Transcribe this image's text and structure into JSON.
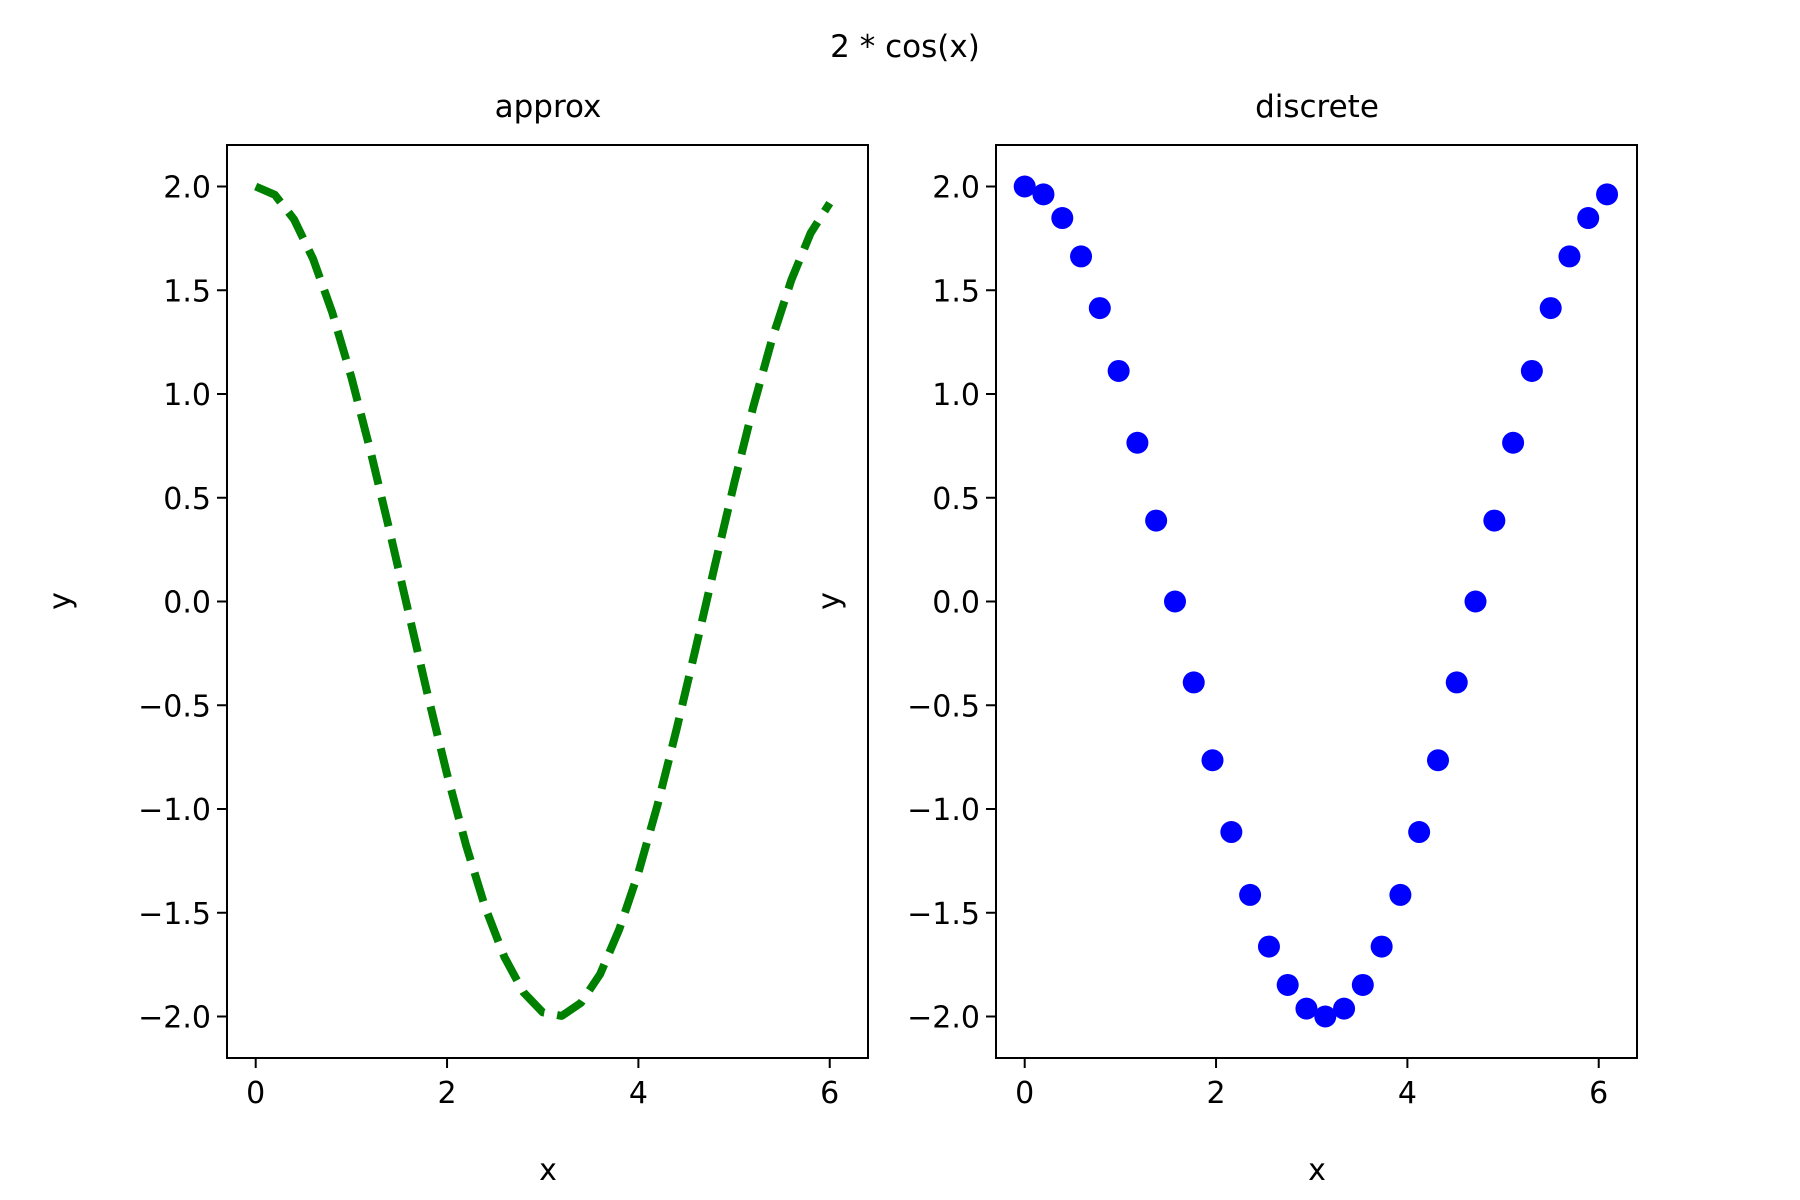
{
  "figure": {
    "suptitle": "2 * cos(x)"
  },
  "chart_data": [
    {
      "type": "line",
      "title": "approx",
      "xlabel": "x",
      "ylabel": "y",
      "xlim": [
        -0.3,
        6.4
      ],
      "ylim": [
        -2.2,
        2.2
      ],
      "xticks": [
        0,
        2,
        4,
        6
      ],
      "xtick_labels": [
        "0",
        "2",
        "4",
        "6"
      ],
      "yticks": [
        2.0,
        1.5,
        1.0,
        0.5,
        0.0,
        -0.5,
        -1.0,
        -1.5,
        -2.0
      ],
      "ytick_labels": [
        "2.0",
        "1.5",
        "1.0",
        "0.5",
        "0.0",
        "−0.5",
        "−1.0",
        "−1.5",
        "−2.0"
      ],
      "grid": false,
      "series": [
        {
          "line_style": "dashed",
          "color": "#008000",
          "x": [
            0.0,
            0.2,
            0.4,
            0.6,
            0.8,
            1.0,
            1.2,
            1.4,
            1.6,
            1.8,
            2.0,
            2.2,
            2.4,
            2.6,
            2.8,
            3.0,
            3.2,
            3.4,
            3.6,
            3.8,
            4.0,
            4.2,
            4.4,
            4.6,
            4.8,
            5.0,
            5.2,
            5.4,
            5.6,
            5.8,
            6.0
          ],
          "y": [
            2.0,
            1.96,
            1.842,
            1.651,
            1.393,
            1.081,
            0.725,
            0.34,
            -0.058,
            -0.454,
            -0.832,
            -1.177,
            -1.475,
            -1.714,
            -1.884,
            -1.98,
            -1.997,
            -1.934,
            -1.796,
            -1.58,
            -1.307,
            -0.981,
            -0.614,
            -0.224,
            0.175,
            0.567,
            0.937,
            1.269,
            1.551,
            1.775,
            1.92
          ]
        }
      ]
    },
    {
      "type": "scatter",
      "title": "discrete",
      "xlabel": "x",
      "ylabel": "y",
      "xlim": [
        -0.3,
        6.4
      ],
      "ylim": [
        -2.2,
        2.2
      ],
      "xticks": [
        0,
        2,
        4,
        6
      ],
      "xtick_labels": [
        "0",
        "2",
        "4",
        "6"
      ],
      "yticks": [
        2.0,
        1.5,
        1.0,
        0.5,
        0.0,
        -0.5,
        -1.0,
        -1.5,
        -2.0
      ],
      "ytick_labels": [
        "2.0",
        "1.5",
        "1.0",
        "0.5",
        "0.0",
        "−0.5",
        "−1.0",
        "−1.5",
        "−2.0"
      ],
      "grid": false,
      "series": [
        {
          "marker": "circle",
          "color": "#0000ff",
          "x": [
            0.0,
            0.196,
            0.393,
            0.589,
            0.785,
            0.982,
            1.178,
            1.374,
            1.571,
            1.767,
            1.963,
            2.16,
            2.356,
            2.553,
            2.749,
            2.945,
            3.142,
            3.338,
            3.534,
            3.731,
            3.927,
            4.123,
            4.32,
            4.516,
            4.712,
            4.909,
            5.105,
            5.301,
            5.498,
            5.694,
            5.89,
            6.087
          ],
          "y": [
            2.0,
            1.962,
            1.848,
            1.663,
            1.414,
            1.111,
            0.765,
            0.39,
            0.0,
            -0.39,
            -0.765,
            -1.111,
            -1.414,
            -1.663,
            -1.848,
            -1.962,
            -2.0,
            -1.962,
            -1.848,
            -1.663,
            -1.414,
            -1.111,
            -0.765,
            -0.39,
            0.0,
            0.39,
            0.765,
            1.111,
            1.414,
            1.663,
            1.848,
            1.962
          ]
        }
      ]
    }
  ]
}
